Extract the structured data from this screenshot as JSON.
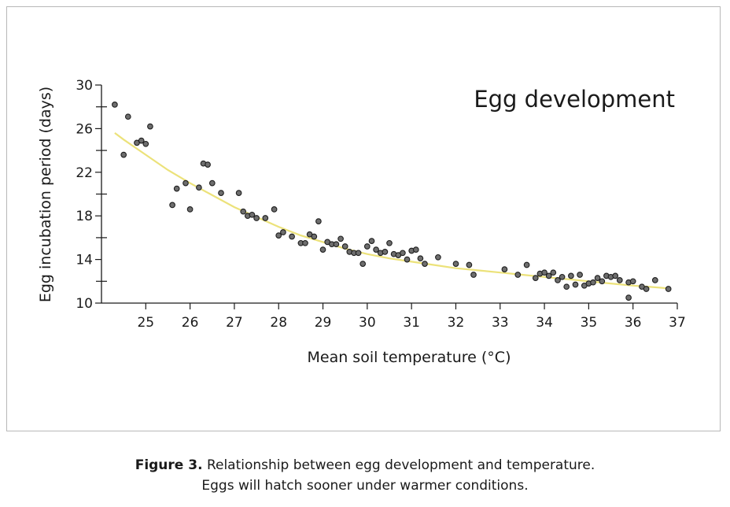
{
  "chart_data": {
    "type": "scatter",
    "title": "Egg development",
    "xlabel": "Mean soil temperature (°C)",
    "ylabel": "Egg incubation period (days)",
    "xlim": [
      24,
      37
    ],
    "ylim": [
      10,
      30
    ],
    "xticks": [
      25,
      26,
      27,
      28,
      29,
      30,
      31,
      32,
      33,
      34,
      35,
      36,
      37
    ],
    "yticks": [
      10,
      14,
      18,
      22,
      26,
      30
    ],
    "grid": false,
    "point_color": "#6e6e6e",
    "curve_color": "#ece27a",
    "series": [
      {
        "type": "scatter",
        "points": [
          [
            24.3,
            28.2
          ],
          [
            24.5,
            23.6
          ],
          [
            24.6,
            27.1
          ],
          [
            24.8,
            24.7
          ],
          [
            24.9,
            24.9
          ],
          [
            25.0,
            24.6
          ],
          [
            25.1,
            26.2
          ],
          [
            25.6,
            19.0
          ],
          [
            25.7,
            20.5
          ],
          [
            25.9,
            21.0
          ],
          [
            26.0,
            18.6
          ],
          [
            26.2,
            20.6
          ],
          [
            26.3,
            22.8
          ],
          [
            26.4,
            22.7
          ],
          [
            26.5,
            21.0
          ],
          [
            26.7,
            20.1
          ],
          [
            27.1,
            20.1
          ],
          [
            27.2,
            18.4
          ],
          [
            27.3,
            18.0
          ],
          [
            27.4,
            18.1
          ],
          [
            27.5,
            17.8
          ],
          [
            27.7,
            17.8
          ],
          [
            27.9,
            18.6
          ],
          [
            28.0,
            16.2
          ],
          [
            28.1,
            16.5
          ],
          [
            28.3,
            16.1
          ],
          [
            28.5,
            15.5
          ],
          [
            28.6,
            15.5
          ],
          [
            28.7,
            16.3
          ],
          [
            28.8,
            16.1
          ],
          [
            28.9,
            17.5
          ],
          [
            29.0,
            14.9
          ],
          [
            29.1,
            15.6
          ],
          [
            29.2,
            15.4
          ],
          [
            29.3,
            15.4
          ],
          [
            29.4,
            15.9
          ],
          [
            29.5,
            15.2
          ],
          [
            29.6,
            14.7
          ],
          [
            29.7,
            14.6
          ],
          [
            29.8,
            14.6
          ],
          [
            29.9,
            13.6
          ],
          [
            30.0,
            15.2
          ],
          [
            30.1,
            15.7
          ],
          [
            30.2,
            14.9
          ],
          [
            30.3,
            14.6
          ],
          [
            30.4,
            14.7
          ],
          [
            30.5,
            15.5
          ],
          [
            30.6,
            14.5
          ],
          [
            30.7,
            14.4
          ],
          [
            30.8,
            14.6
          ],
          [
            30.9,
            14.0
          ],
          [
            31.0,
            14.8
          ],
          [
            31.1,
            14.9
          ],
          [
            31.2,
            14.1
          ],
          [
            31.3,
            13.6
          ],
          [
            31.6,
            14.2
          ],
          [
            32.0,
            13.6
          ],
          [
            32.3,
            13.5
          ],
          [
            32.4,
            12.6
          ],
          [
            33.1,
            13.1
          ],
          [
            33.4,
            12.6
          ],
          [
            33.6,
            13.5
          ],
          [
            33.8,
            12.3
          ],
          [
            33.9,
            12.7
          ],
          [
            34.0,
            12.8
          ],
          [
            34.1,
            12.5
          ],
          [
            34.2,
            12.8
          ],
          [
            34.3,
            12.1
          ],
          [
            34.4,
            12.4
          ],
          [
            34.5,
            11.5
          ],
          [
            34.6,
            12.5
          ],
          [
            34.7,
            11.7
          ],
          [
            34.8,
            12.6
          ],
          [
            34.9,
            11.6
          ],
          [
            35.0,
            11.8
          ],
          [
            35.1,
            11.9
          ],
          [
            35.2,
            12.3
          ],
          [
            35.3,
            12.0
          ],
          [
            35.4,
            12.5
          ],
          [
            35.5,
            12.4
          ],
          [
            35.6,
            12.5
          ],
          [
            35.7,
            12.1
          ],
          [
            35.9,
            11.9
          ],
          [
            35.9,
            10.5
          ],
          [
            36.0,
            12.0
          ],
          [
            36.2,
            11.5
          ],
          [
            36.3,
            11.3
          ],
          [
            36.5,
            12.1
          ],
          [
            36.8,
            11.3
          ]
        ]
      },
      {
        "type": "line",
        "points": [
          [
            24.3,
            25.6
          ],
          [
            24.5,
            25.0
          ],
          [
            25.0,
            23.6
          ],
          [
            25.5,
            22.2
          ],
          [
            26.0,
            21.0
          ],
          [
            26.5,
            19.9
          ],
          [
            27.0,
            18.8
          ],
          [
            27.5,
            17.9
          ],
          [
            28.0,
            17.0
          ],
          [
            28.5,
            16.2
          ],
          [
            29.0,
            15.6
          ],
          [
            29.5,
            15.0
          ],
          [
            30.0,
            14.5
          ],
          [
            30.5,
            14.1
          ],
          [
            31.0,
            13.8
          ],
          [
            31.5,
            13.5
          ],
          [
            32.0,
            13.2
          ],
          [
            32.5,
            13.0
          ],
          [
            33.0,
            12.8
          ],
          [
            33.5,
            12.6
          ],
          [
            34.0,
            12.4
          ],
          [
            34.5,
            12.2
          ],
          [
            35.0,
            12.0
          ],
          [
            35.5,
            11.8
          ],
          [
            36.0,
            11.6
          ],
          [
            36.5,
            11.45
          ],
          [
            36.8,
            11.35
          ]
        ]
      }
    ]
  },
  "caption": {
    "label": "Figure 3.",
    "line1": " Relationship between egg development and temperature.",
    "line2": "Eggs will hatch sooner under warmer conditions."
  }
}
